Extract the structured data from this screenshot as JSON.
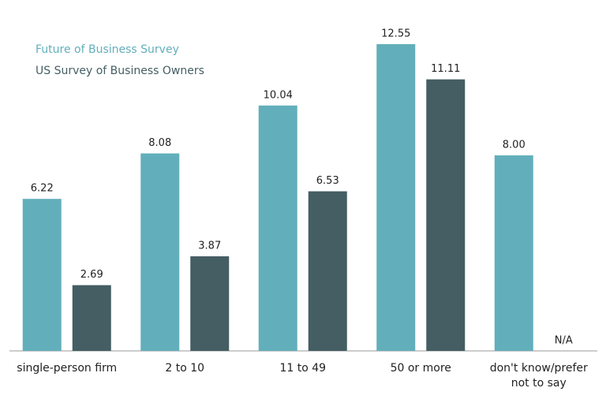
{
  "chart_data": {
    "type": "bar",
    "categories": [
      "single-person firm",
      "2 to 10",
      "11 to 49",
      "50 or more",
      "don't know/prefer not to say"
    ],
    "series": [
      {
        "name": "Future of Business Survey",
        "color": "#62afbb",
        "values": [
          6.22,
          8.08,
          10.04,
          12.55,
          8.0
        ],
        "value_labels": [
          "6.22",
          "8.08",
          "10.04",
          "12.55",
          "8.00"
        ]
      },
      {
        "name": "US Survey of Business Owners",
        "color": "#445e63",
        "values": [
          2.69,
          3.87,
          6.53,
          11.11,
          null
        ],
        "value_labels": [
          "2.69",
          "3.87",
          "6.53",
          "11.11",
          "N/A"
        ]
      }
    ],
    "legend": "top-left"
  }
}
